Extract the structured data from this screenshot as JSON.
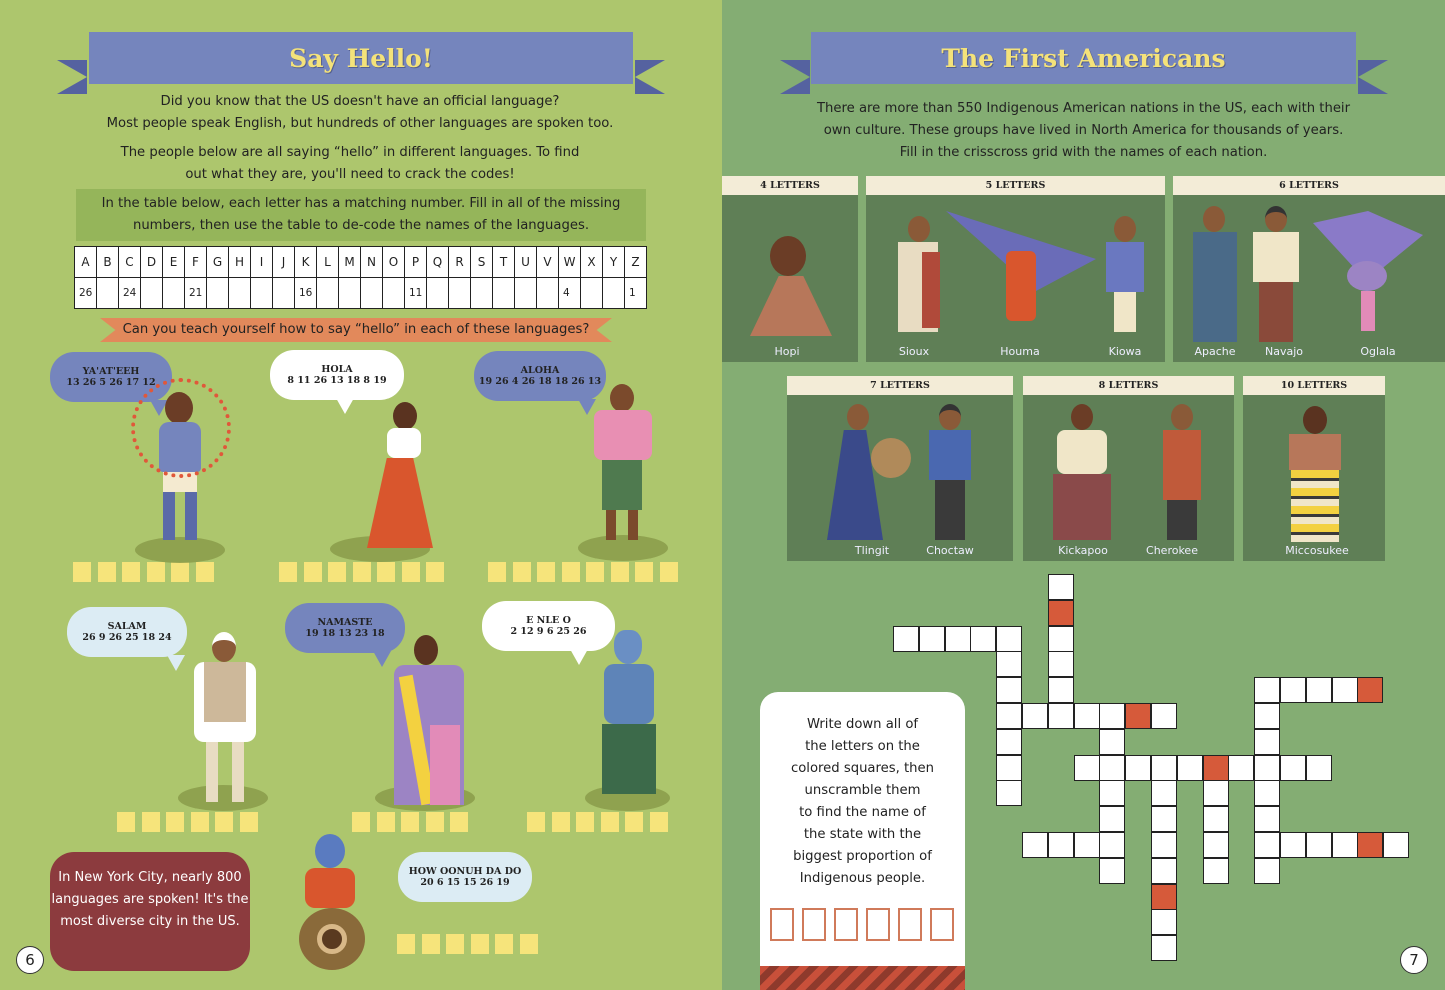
{
  "left_page": {
    "title": "Say Hello!",
    "intro": [
      "Did you know that the US doesn't have an official language?",
      "Most people speak English, but hundreds of other languages are spoken too."
    ],
    "instructions": [
      "The people below are all saying “hello” in different languages. To find",
      "out what they are, you'll need to crack the codes!"
    ],
    "table_note": [
      "In the table below, each letter has a matching number. Fill in all of the missing",
      "numbers, then use the table to de-code the names of the languages."
    ],
    "code_table": {
      "letters": [
        "A",
        "B",
        "C",
        "D",
        "E",
        "F",
        "G",
        "H",
        "I",
        "J",
        "K",
        "L",
        "M",
        "N",
        "O",
        "P",
        "Q",
        "R",
        "S",
        "T",
        "U",
        "V",
        "W",
        "X",
        "Y",
        "Z"
      ],
      "numbers": [
        "26",
        "",
        "24",
        "",
        "",
        "21",
        "",
        "",
        "",
        "",
        "16",
        "",
        "",
        "",
        "",
        "11",
        "",
        "",
        "",
        "",
        "",
        "",
        "4",
        "",
        "",
        "1"
      ]
    },
    "question": "Can you teach yourself how to say “hello” in each of these languages?",
    "greetings": [
      {
        "word": "YA'AT'EEH",
        "code": "13 26 5 26 17 12",
        "boxes": 6,
        "bubble_color": "#7585bd"
      },
      {
        "word": "HOLA",
        "code": "8 11 26 13 18 8 19",
        "boxes": 7,
        "bubble_color": "#ffffff"
      },
      {
        "word": "ALOHA",
        "code": "19 26 4 26 18 18 26 13",
        "boxes": 8,
        "bubble_color": "#7585bd"
      },
      {
        "word": "SALAM",
        "code": "26 9 26 25 18 24",
        "boxes": 6,
        "bubble_color": "#dcecf4"
      },
      {
        "word": "NAMASTE",
        "code": "19 18 13 23 18",
        "boxes": 5,
        "bubble_color": "#7585bd"
      },
      {
        "word": "E NLE O",
        "code": "2 12 9 6 25 26",
        "boxes": 6,
        "bubble_color": "#ffffff"
      },
      {
        "word": "HOW OONUH DA DO",
        "code": "20 6 15 15 26 19",
        "boxes": 6,
        "bubble_color": "#dcecf4"
      }
    ],
    "fact": "In New York City, nearly 800 languages are spoken! It's the most diverse city in the US.",
    "page_number": "6"
  },
  "right_page": {
    "title": "The First Americans",
    "intro": [
      "There are more than 550 Indigenous American nations in the US, each with their",
      "own culture. These groups have lived in North America for thousands of years.",
      "Fill in the crisscross grid with the names of each nation."
    ],
    "panels": [
      {
        "header": "4 LETTERS",
        "names": [
          "Hopi"
        ]
      },
      {
        "header": "5 LETTERS",
        "names": [
          "Sioux",
          "Houma",
          "Kiowa"
        ]
      },
      {
        "header": "6 LETTERS",
        "names": [
          "Apache",
          "Navajo",
          "Oglala"
        ]
      },
      {
        "header": "7 LETTERS",
        "names": [
          "Tlingit",
          "Choctaw"
        ]
      },
      {
        "header": "8 LETTERS",
        "names": [
          "Kickapoo",
          "Cherokee"
        ]
      },
      {
        "header": "10 LETTERS",
        "names": [
          "Miccosukee"
        ]
      }
    ],
    "puzzle_text": [
      "Write down all of",
      "the letters on the",
      "colored squares, then",
      "unscramble them",
      "to find the name of",
      "the state with the",
      "biggest proportion of",
      "Indigenous people."
    ],
    "answer_boxes": 6,
    "page_number": "7"
  },
  "colors": {
    "left_bg": "#adc66d",
    "right_bg": "#84ad73",
    "banner": "#7585bd",
    "title": "#f4e27a",
    "highlight_square": "#d65a3a",
    "fact_box": "#8c3b3e"
  }
}
